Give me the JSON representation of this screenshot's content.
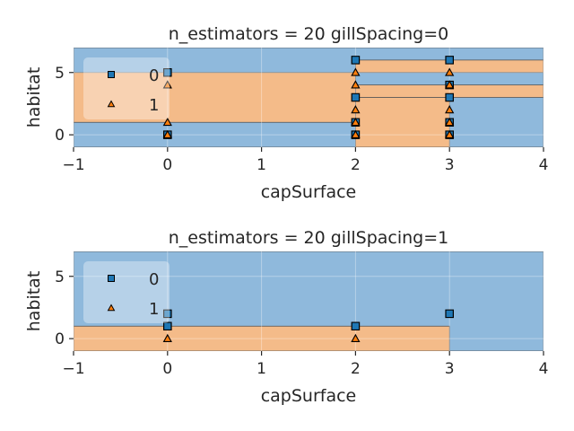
{
  "colors": {
    "class0_region": "#8fb9dc",
    "class1_region": "#f4bb89",
    "class0_marker": "#1f77b4",
    "class1_marker": "#ff7f0e",
    "boundary_line": "#555555",
    "marker_edge": "#000000"
  },
  "chart_data": [
    {
      "type": "scatter",
      "title": "n_estimators = 20 gillSpacing=0",
      "xlabel": "capSurface",
      "ylabel": "habitat",
      "xlim": [
        -1,
        4
      ],
      "ylim": [
        -1,
        7
      ],
      "xticks": [
        -1,
        0,
        1,
        2,
        3,
        4
      ],
      "yticks": [
        0,
        5
      ],
      "grid": true,
      "legend": {
        "placement": "upper-left",
        "entries": [
          "0",
          "1"
        ],
        "markers": [
          "square",
          "triangle"
        ]
      },
      "decision_regions": [
        {
          "x": [
            -1,
            4
          ],
          "y": [
            -1,
            7
          ],
          "class": 0
        },
        {
          "x": [
            -1,
            2
          ],
          "y": [
            1,
            5
          ],
          "class": 1
        },
        {
          "x": [
            2,
            3
          ],
          "y": [
            -1,
            3
          ],
          "class": 1
        },
        {
          "x": [
            2,
            4
          ],
          "y": [
            5,
            6
          ],
          "class": 1
        },
        {
          "x": [
            2,
            4
          ],
          "y": [
            3,
            4
          ],
          "class": 1
        }
      ],
      "series": [
        {
          "name": "0",
          "marker": "square",
          "points": [
            [
              0,
              5
            ],
            [
              0,
              0
            ],
            [
              2,
              6
            ],
            [
              2,
              3
            ],
            [
              2,
              1
            ],
            [
              2,
              0
            ],
            [
              3,
              6
            ],
            [
              3,
              4
            ],
            [
              3,
              3
            ],
            [
              3,
              1
            ],
            [
              3,
              0
            ]
          ]
        },
        {
          "name": "1",
          "marker": "triangle",
          "points": [
            [
              0,
              4
            ],
            [
              0,
              1
            ],
            [
              0,
              0
            ],
            [
              2,
              5
            ],
            [
              2,
              4
            ],
            [
              2,
              2
            ],
            [
              2,
              1
            ],
            [
              2,
              0
            ],
            [
              3,
              5
            ],
            [
              3,
              4
            ],
            [
              3,
              2
            ],
            [
              3,
              1
            ],
            [
              3,
              0
            ]
          ]
        }
      ]
    },
    {
      "type": "scatter",
      "title": "n_estimators = 20 gillSpacing=1",
      "xlabel": "capSurface",
      "ylabel": "habitat",
      "xlim": [
        -1,
        4
      ],
      "ylim": [
        -1,
        7
      ],
      "xticks": [
        -1,
        0,
        1,
        2,
        3,
        4
      ],
      "yticks": [
        0,
        5
      ],
      "grid": true,
      "legend": {
        "placement": "upper-left",
        "entries": [
          "0",
          "1"
        ],
        "markers": [
          "square",
          "triangle"
        ]
      },
      "decision_regions": [
        {
          "x": [
            -1,
            4
          ],
          "y": [
            -1,
            7
          ],
          "class": 0
        },
        {
          "x": [
            -1,
            3
          ],
          "y": [
            -1,
            1
          ],
          "class": 1
        }
      ],
      "series": [
        {
          "name": "0",
          "marker": "square",
          "points": [
            [
              0,
              2
            ],
            [
              0,
              1
            ],
            [
              2,
              1
            ],
            [
              3,
              2
            ]
          ]
        },
        {
          "name": "1",
          "marker": "triangle",
          "points": [
            [
              0,
              0
            ],
            [
              2,
              0
            ]
          ]
        }
      ]
    }
  ]
}
